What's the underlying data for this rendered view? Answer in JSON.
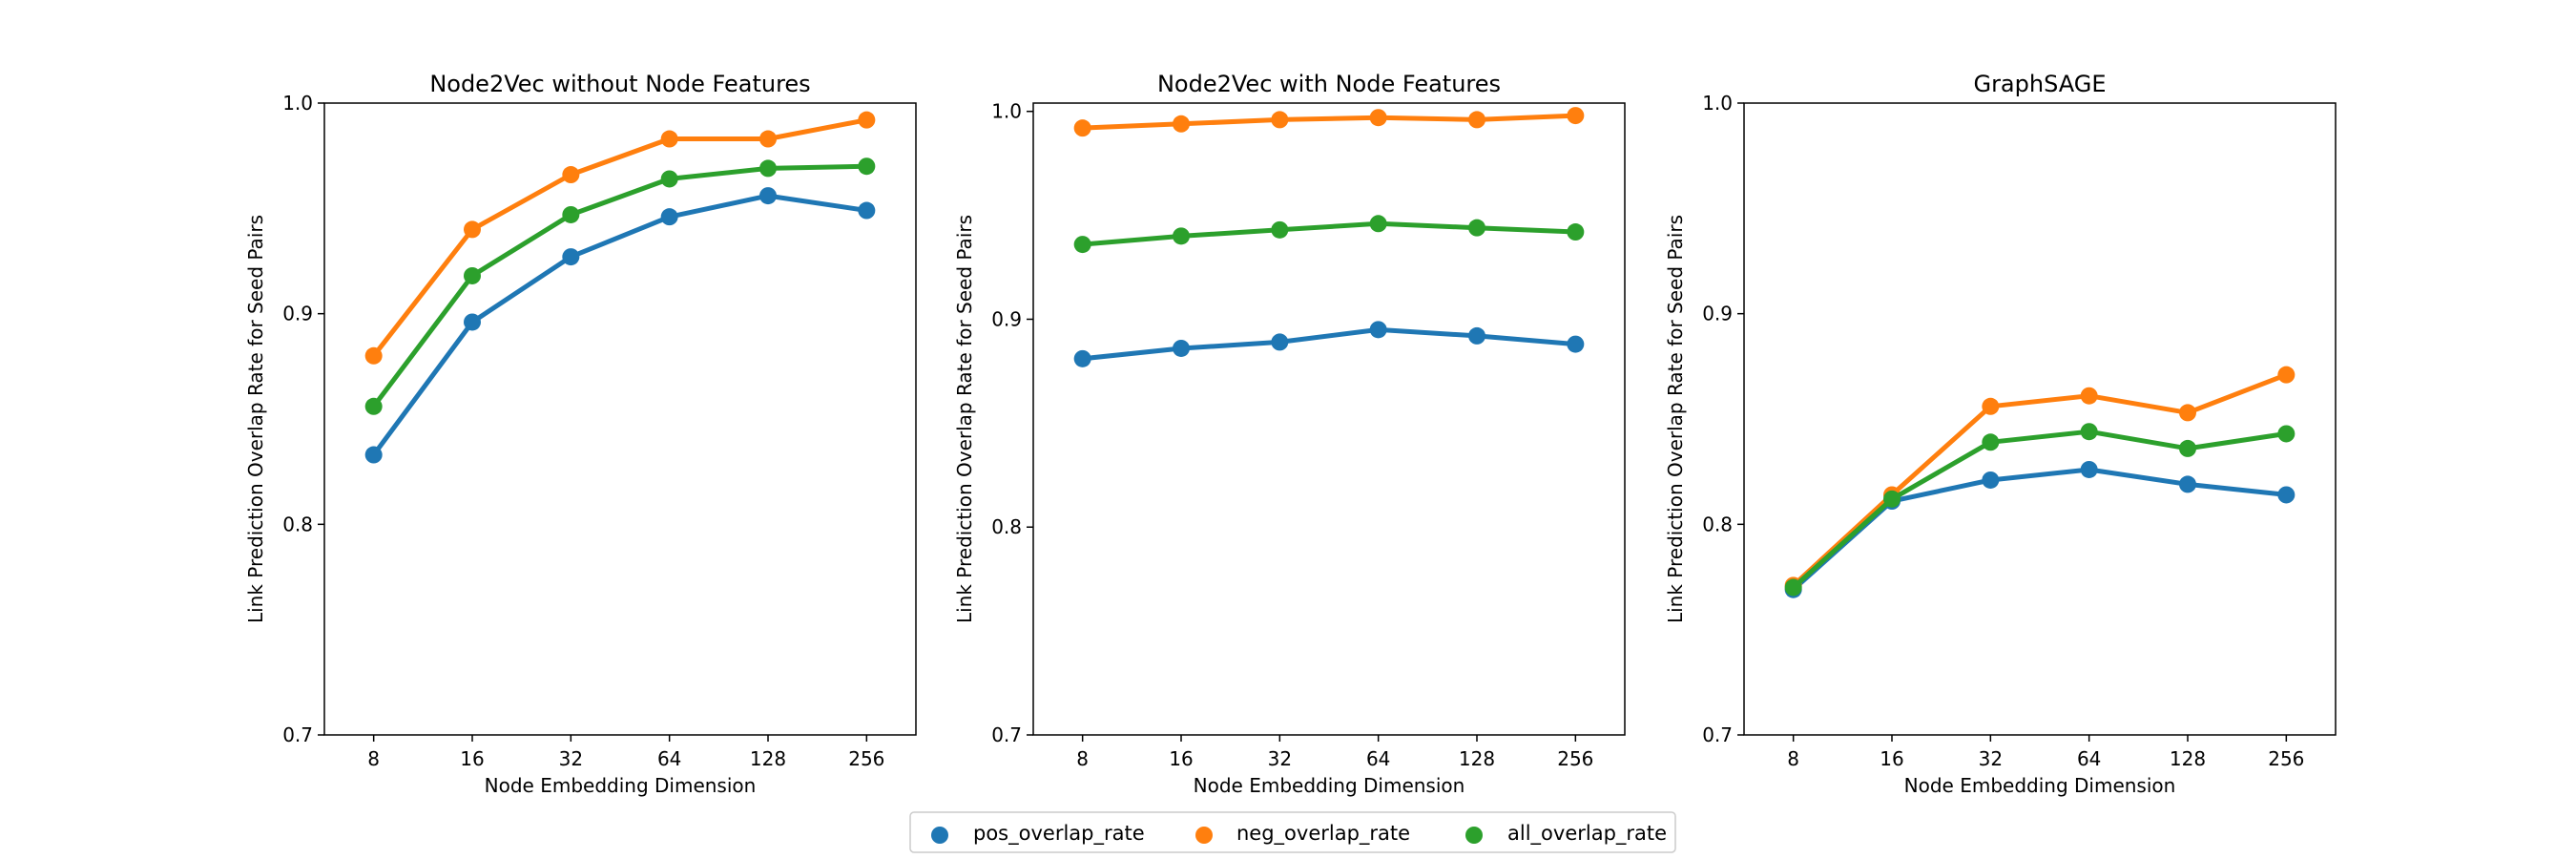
{
  "chart_data": [
    {
      "type": "line",
      "title": "Node2Vec without Node Features",
      "xlabel": "Node Embedding Dimension",
      "ylabel": "Link Prediction Overlap Rate for Seed Pairs",
      "categories": [
        "8",
        "16",
        "32",
        "64",
        "128",
        "256"
      ],
      "ylim": [
        0.7,
        1.0
      ],
      "yticks": [
        "0.7",
        "0.8",
        "0.9",
        "1.0"
      ],
      "series": [
        {
          "name": "pos_overlap_rate",
          "color": "#1f77b4",
          "values": [
            0.833,
            0.896,
            0.927,
            0.946,
            0.956,
            0.949
          ]
        },
        {
          "name": "neg_overlap_rate",
          "color": "#ff7f0e",
          "values": [
            0.88,
            0.94,
            0.966,
            0.983,
            0.983,
            0.992
          ]
        },
        {
          "name": "all_overlap_rate",
          "color": "#2ca02c",
          "values": [
            0.856,
            0.918,
            0.947,
            0.964,
            0.969,
            0.97
          ]
        }
      ]
    },
    {
      "type": "line",
      "title": "Node2Vec with Node Features",
      "xlabel": "Node Embedding Dimension",
      "ylabel": "Link Prediction Overlap Rate for Seed Pairs",
      "categories": [
        "8",
        "16",
        "32",
        "64",
        "128",
        "256"
      ],
      "ylim": [
        0.7,
        1.004
      ],
      "yticks": [
        "0.7",
        "0.8",
        "0.9",
        "1.0"
      ],
      "series": [
        {
          "name": "pos_overlap_rate",
          "color": "#1f77b4",
          "values": [
            0.881,
            0.886,
            0.889,
            0.895,
            0.892,
            0.888
          ]
        },
        {
          "name": "neg_overlap_rate",
          "color": "#ff7f0e",
          "values": [
            0.992,
            0.994,
            0.996,
            0.997,
            0.996,
            0.998
          ]
        },
        {
          "name": "all_overlap_rate",
          "color": "#2ca02c",
          "values": [
            0.936,
            0.94,
            0.943,
            0.946,
            0.944,
            0.942
          ]
        }
      ]
    },
    {
      "type": "line",
      "title": "GraphSAGE",
      "xlabel": "Node Embedding Dimension",
      "ylabel": "Link Prediction Overlap Rate for Seed Pairs",
      "categories": [
        "8",
        "16",
        "32",
        "64",
        "128",
        "256"
      ],
      "ylim": [
        0.7,
        1.0
      ],
      "yticks": [
        "0.7",
        "0.8",
        "0.9",
        "1.0"
      ],
      "series": [
        {
          "name": "pos_overlap_rate",
          "color": "#1f77b4",
          "values": [
            0.769,
            0.811,
            0.821,
            0.826,
            0.819,
            0.814
          ]
        },
        {
          "name": "neg_overlap_rate",
          "color": "#ff7f0e",
          "values": [
            0.771,
            0.814,
            0.856,
            0.861,
            0.853,
            0.871
          ]
        },
        {
          "name": "all_overlap_rate",
          "color": "#2ca02c",
          "values": [
            0.77,
            0.812,
            0.839,
            0.844,
            0.836,
            0.843
          ]
        }
      ]
    }
  ],
  "legend": {
    "location": "bottom-center",
    "items": [
      {
        "label": "pos_overlap_rate",
        "color": "#1f77b4"
      },
      {
        "label": "neg_overlap_rate",
        "color": "#ff7f0e"
      },
      {
        "label": "all_overlap_rate",
        "color": "#2ca02c"
      }
    ]
  }
}
